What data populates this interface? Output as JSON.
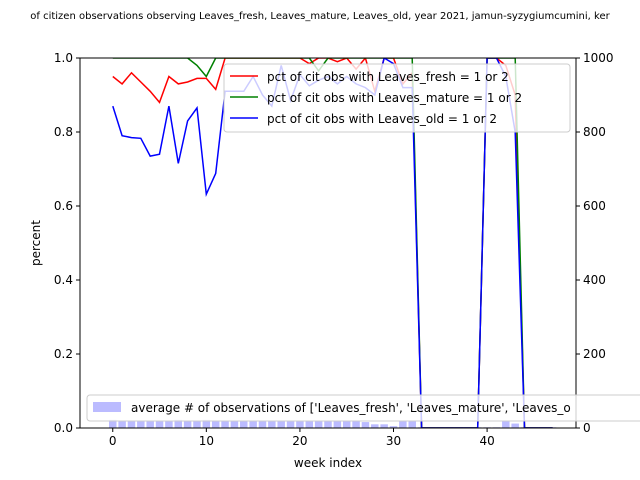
{
  "chart_data": {
    "type": "line",
    "title": "of citizen observations observing Leaves_fresh, Leaves_mature, Leaves_old, year 2021, jamun-syzygiumcumini, ker",
    "xlabel": "week index",
    "ylabel": "percent",
    "xlim": [
      -3.5,
      49.5
    ],
    "ylim": [
      0,
      1
    ],
    "ylim_right": [
      0,
      1000
    ],
    "x_ticks": [
      0,
      10,
      20,
      30,
      40
    ],
    "y_ticks": [
      0.0,
      0.2,
      0.4,
      0.6,
      0.8,
      1.0
    ],
    "y_tick_labels": [
      "0.0",
      "0.2",
      "0.4",
      "0.6",
      "0.8",
      "1.0"
    ],
    "y_right_ticks": [
      0,
      200,
      400,
      600,
      800,
      1000
    ],
    "y_right_tick_labels": [
      "0",
      "200",
      "400",
      "600",
      "800",
      "1000"
    ],
    "legend_placement": "upper-right",
    "series": [
      {
        "name": "pct of cit obs with Leaves_fresh = 1 or 2",
        "color": "#ff0000",
        "x": [
          0,
          1,
          2,
          3,
          4,
          5,
          6,
          7,
          8,
          9,
          10,
          11,
          12,
          13,
          14,
          15,
          16,
          17,
          18,
          19,
          20,
          21,
          22,
          23,
          24,
          25,
          26,
          27,
          28,
          29,
          30,
          31,
          32,
          33,
          34,
          35,
          36,
          37,
          38,
          39,
          40,
          41,
          42,
          43,
          44,
          45,
          46,
          47
        ],
        "values": [
          0.95,
          0.93,
          0.96,
          0.935,
          0.91,
          0.88,
          0.95,
          0.93,
          0.935,
          0.945,
          0.945,
          0.915,
          1.0,
          1.0,
          1.0,
          1.0,
          1.0,
          1.0,
          1.0,
          1.0,
          1.0,
          0.985,
          1.0,
          1.0,
          0.99,
          1.0,
          0.97,
          1.0,
          0.91,
          1.0,
          1.0,
          0.93,
          0.96,
          0.0,
          0.0,
          0.0,
          0.0,
          0.0,
          0.0,
          0.0,
          1.0,
          1.0,
          0.98,
          0.9,
          0.0,
          0.0,
          0.0,
          0.0
        ]
      },
      {
        "name": "pct of cit obs with Leaves_mature = 1 or 2",
        "color": "#008000",
        "x": [
          0,
          1,
          2,
          3,
          4,
          5,
          6,
          7,
          8,
          9,
          10,
          11,
          12,
          13,
          14,
          15,
          16,
          17,
          18,
          19,
          20,
          21,
          22,
          23,
          24,
          25,
          26,
          27,
          28,
          29,
          30,
          31,
          32,
          33,
          34,
          35,
          36,
          37,
          38,
          39,
          40,
          41,
          42,
          43,
          44,
          45,
          46,
          47
        ],
        "values": [
          1.0,
          1.0,
          1.0,
          1.0,
          1.0,
          1.0,
          1.0,
          1.0,
          1.0,
          0.98,
          0.95,
          1.0,
          1.0,
          1.0,
          1.0,
          1.0,
          1.0,
          1.0,
          1.0,
          1.0,
          1.0,
          1.0,
          0.965,
          1.0,
          1.0,
          1.0,
          1.0,
          1.0,
          1.0,
          1.0,
          1.0,
          1.0,
          1.0,
          0.0,
          0.0,
          0.0,
          0.0,
          0.0,
          0.0,
          0.0,
          1.0,
          1.0,
          1.0,
          1.0,
          0.0,
          0.0,
          0.0,
          0.0
        ]
      },
      {
        "name": "pct of cit obs with Leaves_old = 1 or 2",
        "color": "#0000ff",
        "x": [
          0,
          1,
          2,
          3,
          4,
          5,
          6,
          7,
          8,
          9,
          10,
          11,
          12,
          13,
          14,
          15,
          16,
          17,
          18,
          19,
          20,
          21,
          22,
          23,
          24,
          25,
          26,
          27,
          28,
          29,
          30,
          31,
          32,
          33,
          34,
          35,
          36,
          37,
          38,
          39,
          40,
          41,
          42,
          43,
          44,
          45,
          46,
          47
        ],
        "values": [
          0.87,
          0.79,
          0.785,
          0.783,
          0.735,
          0.74,
          0.87,
          0.715,
          0.83,
          0.865,
          0.632,
          0.688,
          0.91,
          0.91,
          0.91,
          0.95,
          0.9,
          0.87,
          0.98,
          0.885,
          0.955,
          0.925,
          0.94,
          0.95,
          0.93,
          0.95,
          0.93,
          0.92,
          0.9,
          1.0,
          0.985,
          0.92,
          0.92,
          0.0,
          0.0,
          0.0,
          0.0,
          0.0,
          0.0,
          0.0,
          1.0,
          1.0,
          0.95,
          0.8,
          0.0,
          0.0,
          0.0,
          0.0
        ]
      }
    ],
    "bar_series": {
      "name": "average # of observations of ['Leaves_fresh', 'Leaves_mature', 'Leaves_o",
      "color": "#bbbbff",
      "axis": "right",
      "x": [
        0,
        1,
        2,
        3,
        4,
        5,
        6,
        7,
        8,
        9,
        10,
        11,
        12,
        13,
        14,
        15,
        16,
        17,
        18,
        19,
        20,
        21,
        22,
        23,
        24,
        25,
        26,
        27,
        28,
        29,
        30,
        31,
        32,
        33,
        34,
        35,
        36,
        37,
        38,
        39,
        40,
        41,
        42,
        43,
        44,
        45,
        46,
        47
      ],
      "values": [
        22,
        20,
        20,
        20,
        18,
        20,
        20,
        22,
        20,
        20,
        22,
        20,
        20,
        20,
        18,
        20,
        18,
        18,
        18,
        18,
        18,
        18,
        18,
        18,
        18,
        18,
        18,
        16,
        10,
        10,
        5,
        18,
        18,
        2,
        2,
        2,
        2,
        2,
        2,
        2,
        2,
        2,
        18,
        12,
        2,
        2,
        2,
        2
      ]
    }
  }
}
